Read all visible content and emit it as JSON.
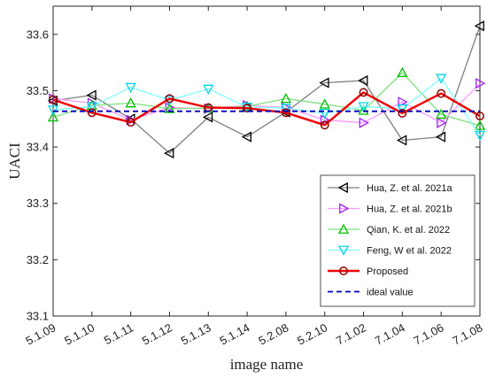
{
  "chart_data": {
    "type": "line",
    "title": "",
    "xlabel": "image name",
    "ylabel": "UACI",
    "categories": [
      "5.1.09",
      "5.1.10",
      "5.1.11",
      "5.1.12",
      "5.1.13",
      "5.1.14",
      "5.2.08",
      "5.2.10",
      "7.1.02",
      "7.1.04",
      "7.1.06",
      "7.1.08"
    ],
    "ylim": [
      33.1,
      33.65
    ],
    "yticks": [
      "33.1",
      "33.2",
      "33.3",
      "33.4",
      "33.5",
      "33.6"
    ],
    "grid": false,
    "legend_position": "bottom-right",
    "series": [
      {
        "name": "Hua, Z. et al. 2021a",
        "color": "#7f7f7f",
        "marker_color": "#000000",
        "marker": "triangle-left",
        "line_width": 1.3,
        "values": [
          33.482,
          33.492,
          33.45,
          33.389,
          33.453,
          33.418,
          33.462,
          33.514,
          33.518,
          33.412,
          33.418,
          33.615
        ]
      },
      {
        "name": "Hua, Z. et al. 2021b",
        "color": "#ff9aff",
        "marker_color": "#a020f0",
        "marker": "triangle-right",
        "line_width": 1.3,
        "values": [
          33.486,
          33.478,
          33.448,
          33.47,
          33.468,
          33.474,
          33.47,
          33.448,
          33.443,
          33.48,
          33.443,
          33.513
        ]
      },
      {
        "name": "Qian, K. et al. 2022",
        "color": "#7fe07f",
        "marker_color": "#00c000",
        "marker": "triangle-up",
        "line_width": 1.3,
        "values": [
          33.453,
          33.474,
          33.478,
          33.468,
          33.469,
          33.472,
          33.486,
          33.476,
          33.465,
          33.532,
          33.458,
          33.438
        ]
      },
      {
        "name": "Feng, W et al. 2022",
        "color": "#80ffff",
        "marker_color": "#00d5e8",
        "marker": "triangle-down",
        "line_width": 1.3,
        "values": [
          33.466,
          33.472,
          33.506,
          33.483,
          33.503,
          33.471,
          33.469,
          33.46,
          33.472,
          33.468,
          33.522,
          33.421
        ]
      },
      {
        "name": "Proposed",
        "color": "#ee0000",
        "marker_color": "#8b0000",
        "marker": "circle",
        "line_width": 2.4,
        "values": [
          33.484,
          33.461,
          33.444,
          33.486,
          33.47,
          33.469,
          33.461,
          33.439,
          33.497,
          33.46,
          33.495,
          33.455
        ]
      },
      {
        "name": "ideal value",
        "color": "#0000bb",
        "marker": "none",
        "line_width": 1.8,
        "dashed": true,
        "values": [
          33.4635,
          33.4635,
          33.4635,
          33.4635,
          33.4635,
          33.4635,
          33.4635,
          33.4635,
          33.4635,
          33.4635,
          33.4635,
          33.4635
        ]
      }
    ]
  }
}
